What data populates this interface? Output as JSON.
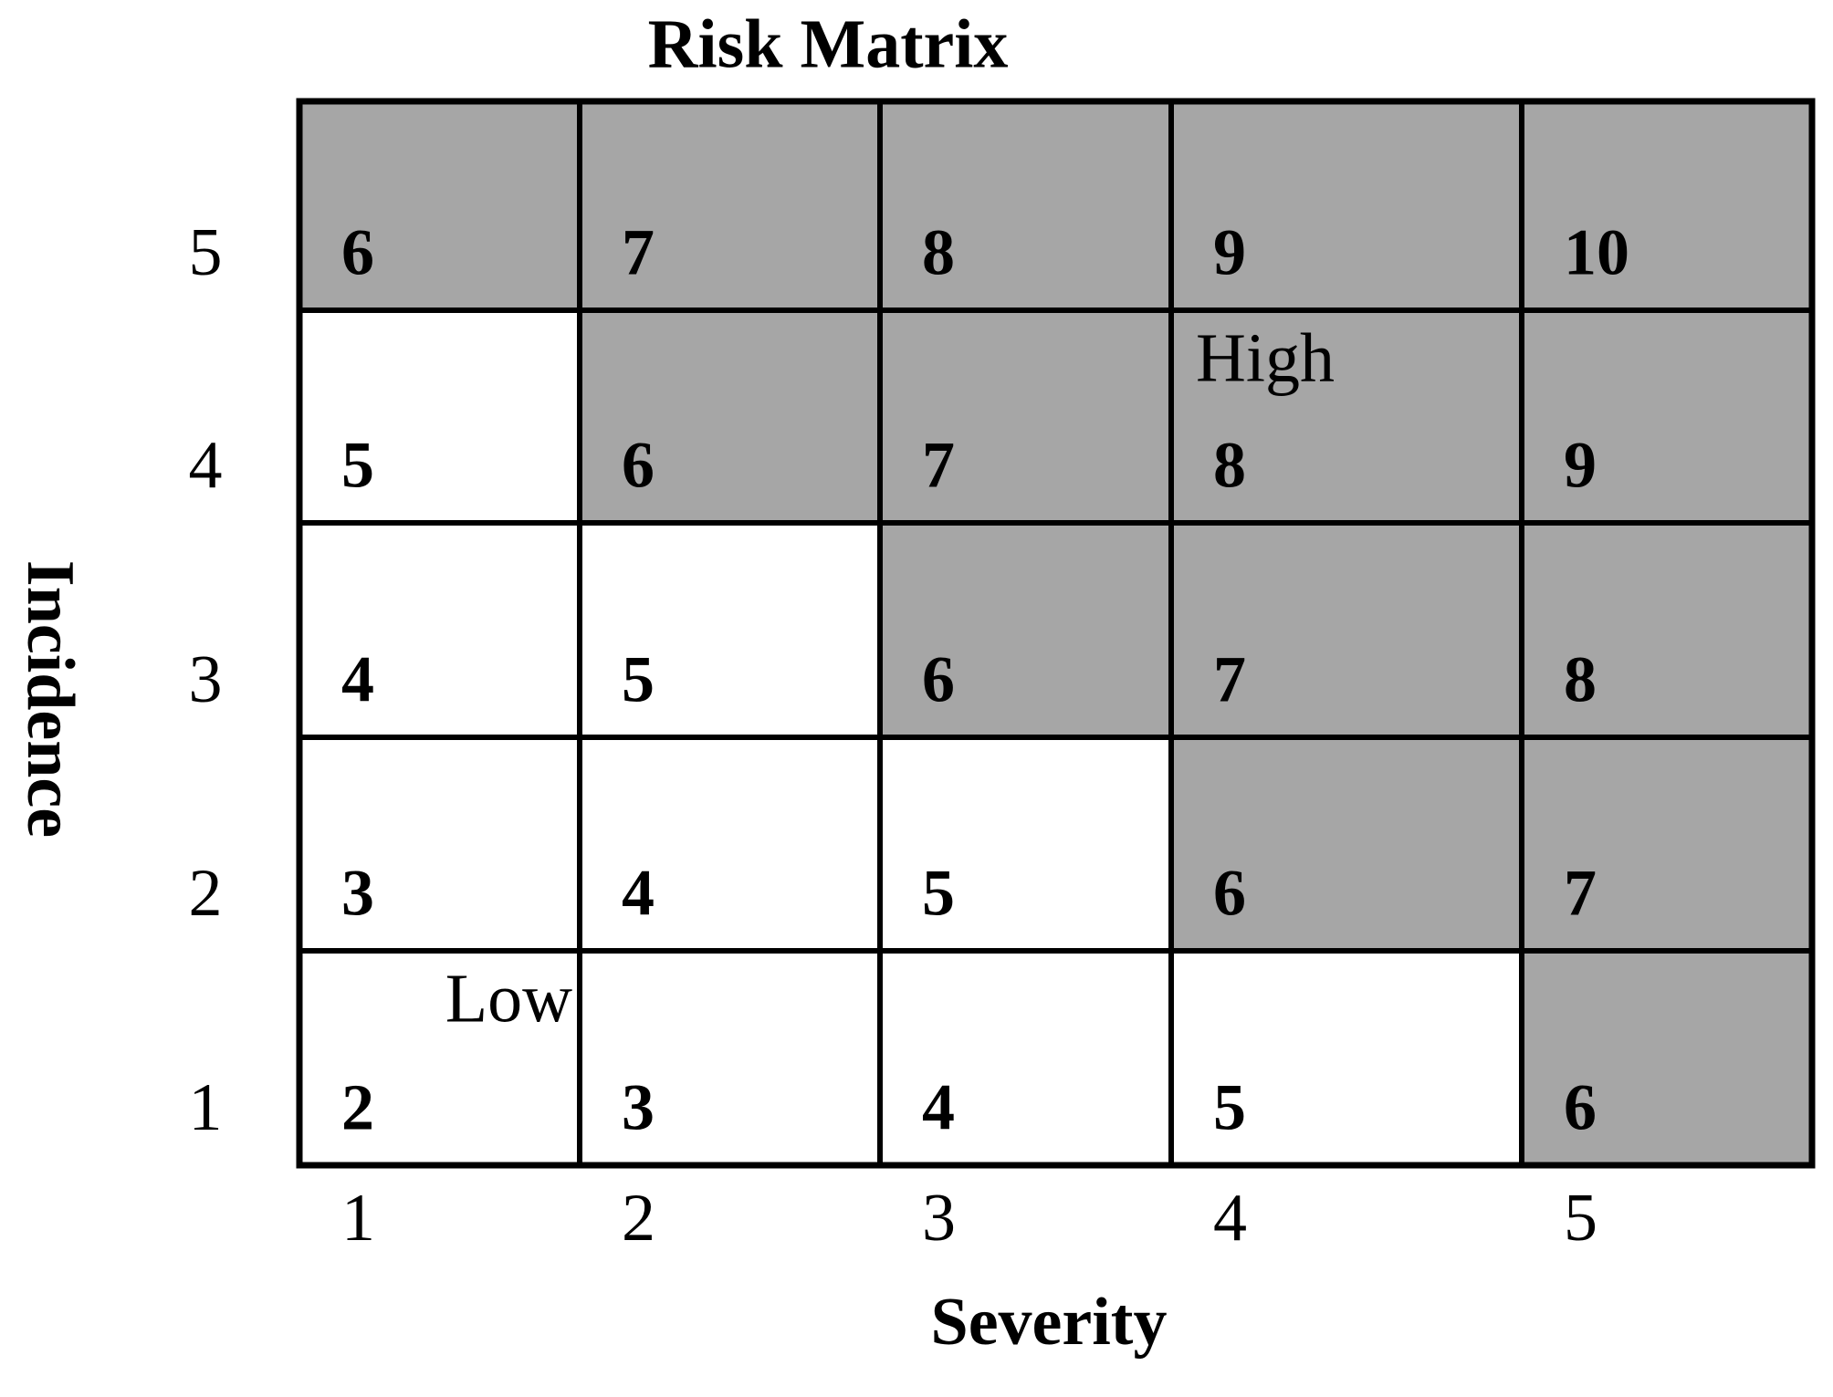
{
  "title": "Risk Matrix",
  "x_axis": {
    "label": "Severity",
    "ticks": [
      "1",
      "2",
      "3",
      "4",
      "5"
    ]
  },
  "y_axis": {
    "label": "Incidence",
    "ticks": [
      "5",
      "4",
      "3",
      "2",
      "1"
    ]
  },
  "rows": [
    [
      {
        "value": 6,
        "shaded": true
      },
      {
        "value": 7,
        "shaded": true
      },
      {
        "value": 8,
        "shaded": true
      },
      {
        "value": 9,
        "shaded": true
      },
      {
        "value": 10,
        "shaded": true
      }
    ],
    [
      {
        "value": 5,
        "shaded": false
      },
      {
        "value": 6,
        "shaded": true
      },
      {
        "value": 7,
        "shaded": true
      },
      {
        "value": 8,
        "shaded": true,
        "note": "High"
      },
      {
        "value": 9,
        "shaded": true
      }
    ],
    [
      {
        "value": 4,
        "shaded": false
      },
      {
        "value": 5,
        "shaded": false
      },
      {
        "value": 6,
        "shaded": true
      },
      {
        "value": 7,
        "shaded": true
      },
      {
        "value": 8,
        "shaded": true
      }
    ],
    [
      {
        "value": 3,
        "shaded": false
      },
      {
        "value": 4,
        "shaded": false
      },
      {
        "value": 5,
        "shaded": false
      },
      {
        "value": 6,
        "shaded": true
      },
      {
        "value": 7,
        "shaded": true
      }
    ],
    [
      {
        "value": 2,
        "shaded": false,
        "note": "Low"
      },
      {
        "value": 3,
        "shaded": false
      },
      {
        "value": 4,
        "shaded": false
      },
      {
        "value": 5,
        "shaded": false
      },
      {
        "value": 6,
        "shaded": true
      }
    ]
  ]
}
